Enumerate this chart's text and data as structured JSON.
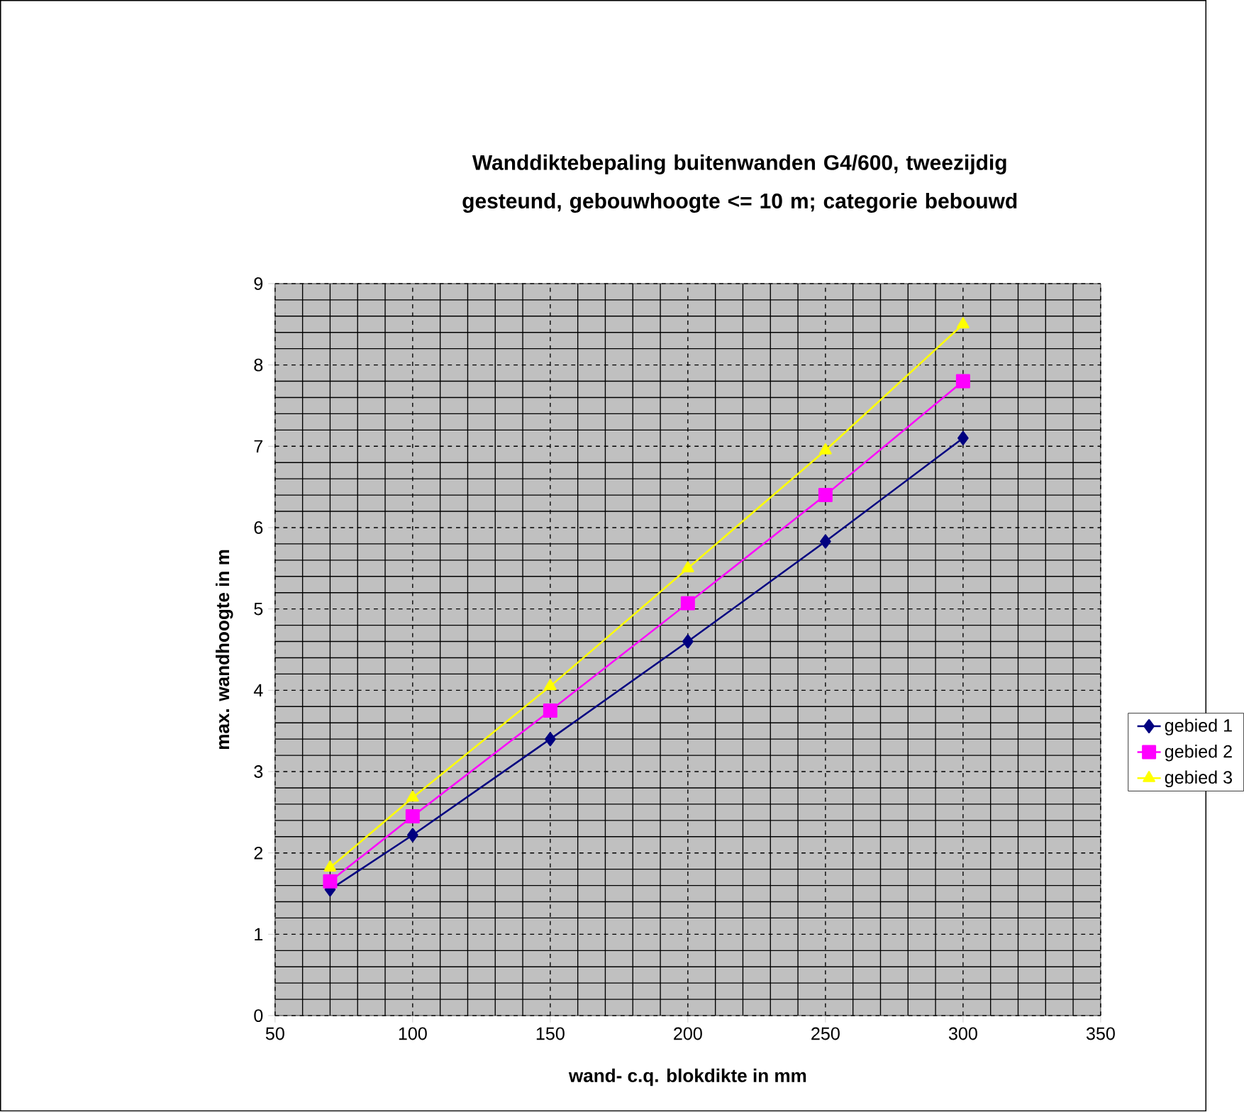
{
  "chart_data": {
    "type": "line",
    "title": "Wanddiktebepaling buitenwanden G4/600, tweezijdig gesteund, gebouwhoogte <= 10 m; categorie bebouwd",
    "xlabel": "wand- c.q. blokdikte in mm",
    "ylabel": "max. wandhoogte in m",
    "x": [
      70,
      100,
      150,
      200,
      250,
      300
    ],
    "series": [
      {
        "name": "gebied 1",
        "color": "#000080",
        "marker": "diamond",
        "values": [
          1.55,
          2.22,
          3.4,
          4.6,
          5.83,
          7.1
        ]
      },
      {
        "name": "gebied 2",
        "color": "#ff00ff",
        "marker": "square",
        "values": [
          1.65,
          2.45,
          3.75,
          5.07,
          6.4,
          7.8
        ]
      },
      {
        "name": "gebied 3",
        "color": "#ffff00",
        "marker": "triangle",
        "values": [
          1.82,
          2.68,
          4.05,
          5.5,
          6.95,
          8.5
        ]
      }
    ],
    "xlim": [
      50,
      350
    ],
    "xticks": [
      50,
      100,
      150,
      200,
      250,
      300,
      350
    ],
    "ylim": [
      0,
      9
    ],
    "yticks": [
      0,
      1,
      2,
      3,
      4,
      5,
      6,
      7,
      8,
      9
    ],
    "grid": true,
    "legend": "right",
    "line_style": "solid"
  }
}
